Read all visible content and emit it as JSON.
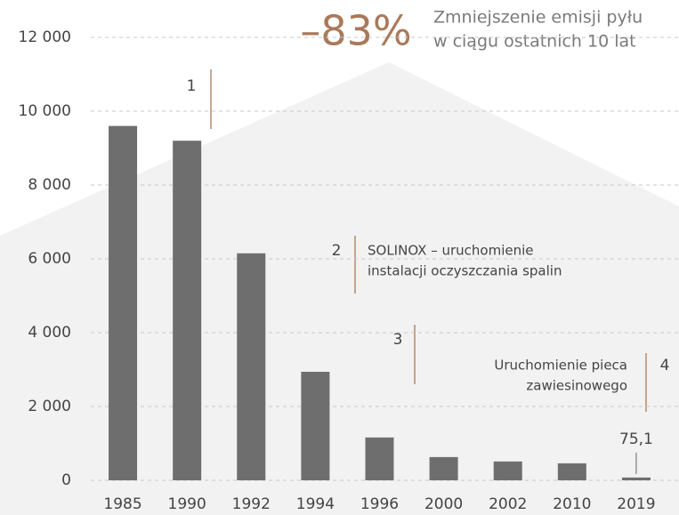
{
  "chart_data": {
    "type": "bar",
    "title": "–83%",
    "subtitle": [
      "Zmniejszenie emisji pyłu",
      "w ciągu ostatnich 10 lat"
    ],
    "categories": [
      "1985",
      "1990",
      "1992",
      "1994",
      "1996",
      "2000",
      "2002",
      "2010",
      "2019"
    ],
    "values": [
      9600,
      9200,
      6150,
      2940,
      1160,
      630,
      510,
      460,
      75.1
    ],
    "value_labels": [
      null,
      null,
      null,
      null,
      null,
      null,
      null,
      null,
      "75,1"
    ],
    "color": "#6e6e6e",
    "ylim": [
      0,
      12000
    ],
    "yticks": [
      0,
      {
        "value": 2000,
        "label": "2 000"
      },
      {
        "value": 4000,
        "label": "4 000"
      },
      {
        "value": 6000,
        "label": "6 000"
      },
      {
        "value": 8000,
        "label": "8 000"
      },
      {
        "value": 10000,
        "label": "10 000"
      },
      {
        "value": 12000,
        "label": "12 000"
      }
    ],
    "grid": true,
    "annotations": [
      {
        "number": "1"
      },
      {
        "number": "2",
        "text": [
          "SOLINOX – uruchomienie",
          "instalacji oczyszczania spalin"
        ]
      },
      {
        "number": "3"
      },
      {
        "number": "4",
        "text": [
          "Uruchomienie pieca",
          "zawiesinowego"
        ]
      }
    ]
  }
}
